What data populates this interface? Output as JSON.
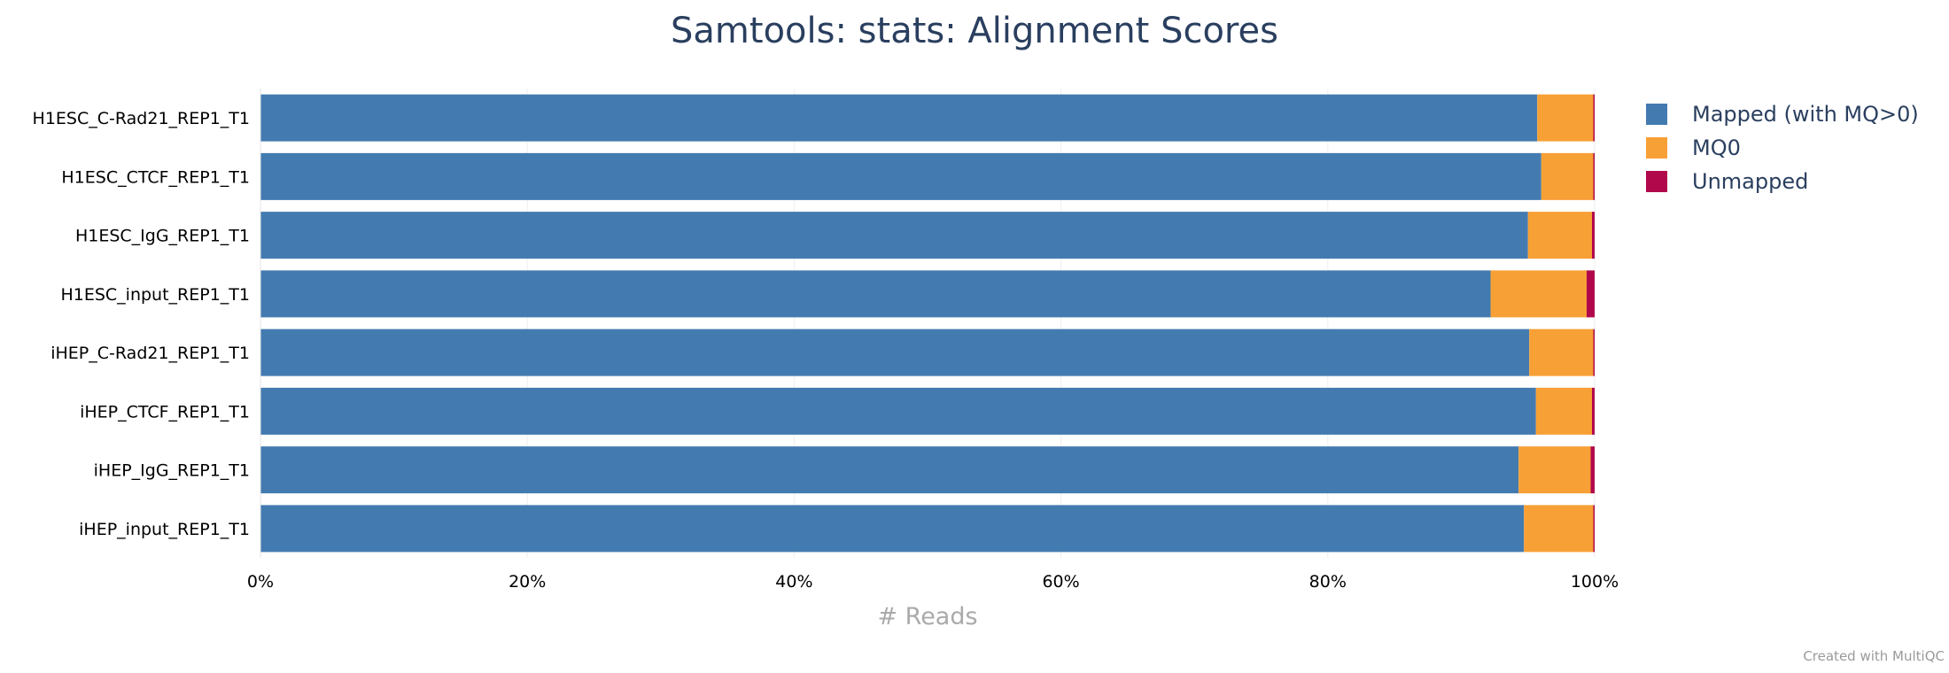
{
  "chart_data": {
    "type": "bar",
    "orientation": "horizontal",
    "stacked": true,
    "title": "Samtools: stats: Alignment Scores",
    "xlabel": "# Reads",
    "xlim": [
      0,
      100
    ],
    "x_ticks": [
      "0%",
      "20%",
      "40%",
      "60%",
      "80%",
      "100%"
    ],
    "grid": true,
    "legend_position": "top-right",
    "categories": [
      "H1ESC_C-Rad21_REP1_T1",
      "H1ESC_CTCF_REP1_T1",
      "H1ESC_IgG_REP1_T1",
      "H1ESC_input_REP1_T1",
      "iHEP_C-Rad21_REP1_T1",
      "iHEP_CTCF_REP1_T1",
      "iHEP_IgG_REP1_T1",
      "iHEP_input_REP1_T1"
    ],
    "series": [
      {
        "name": "Mapped (with MQ>0)",
        "color": "#437bb1",
        "values": [
          95.7,
          96.0,
          95.0,
          92.2,
          95.1,
          95.6,
          94.3,
          94.7
        ]
      },
      {
        "name": "MQ0",
        "color": "#f7a035",
        "values": [
          4.2,
          3.9,
          4.8,
          7.2,
          4.8,
          4.2,
          5.4,
          5.2
        ]
      },
      {
        "name": "Unmapped",
        "color": "#b1084c",
        "values": [
          0.1,
          0.1,
          0.2,
          0.6,
          0.1,
          0.2,
          0.3,
          0.1
        ]
      }
    ]
  },
  "credit": "Created with MultiQC"
}
